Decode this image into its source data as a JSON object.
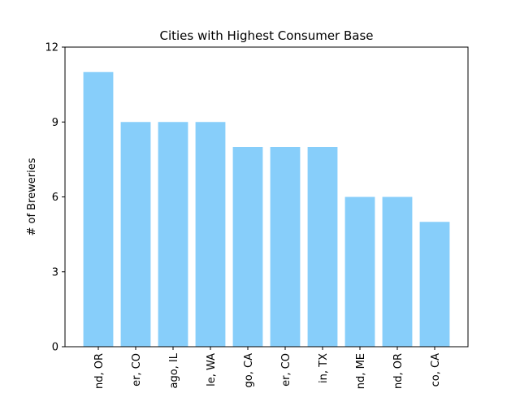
{
  "chart_data": {
    "type": "bar",
    "title": "Cities with Highest Consumer Base",
    "xlabel": "",
    "ylabel": "# of Breweries",
    "categories": [
      "nd, OR",
      "er, CO",
      "ago, IL",
      "le, WA",
      "go, CA",
      "er, CO",
      "in, TX",
      "nd, ME",
      "nd, OR",
      "co, CA"
    ],
    "values": [
      11,
      9,
      9,
      9,
      8,
      8,
      8,
      6,
      6,
      5
    ],
    "ylim": [
      0,
      12
    ],
    "yticks": [
      0,
      3,
      6,
      9,
      12
    ],
    "bar_color": "#87cefa",
    "grid": false
  }
}
